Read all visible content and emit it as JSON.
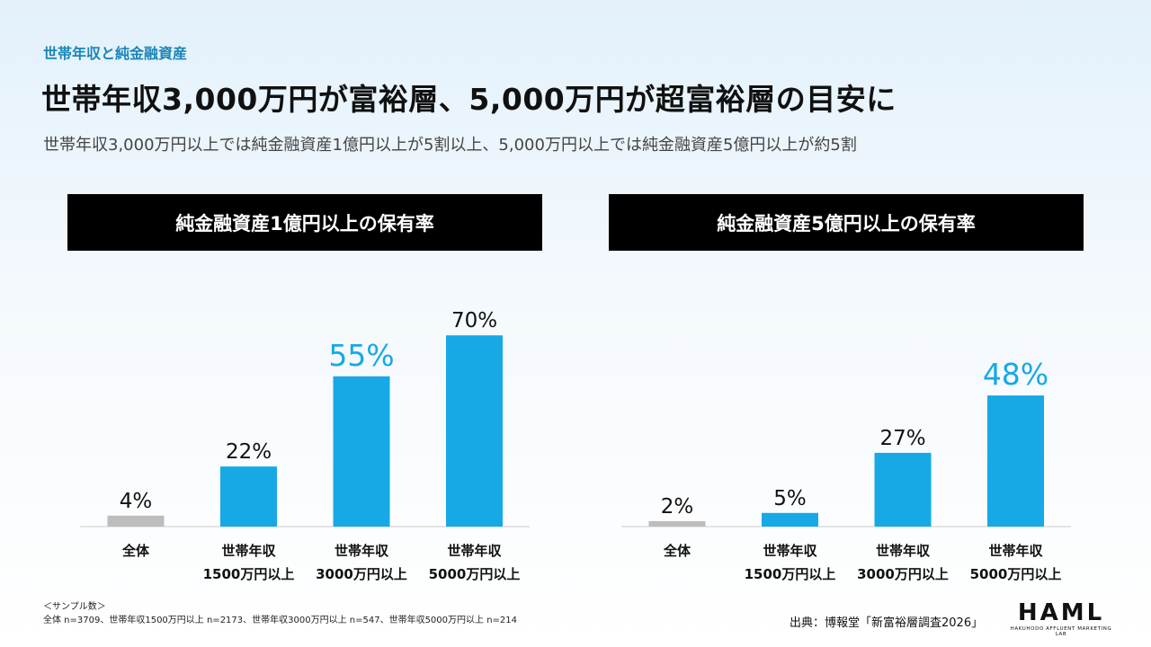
{
  "header": {
    "section_label": "世帯年収と純金融資産",
    "title": "世帯年収3,000万円が富裕層、5,000万円が超富裕層の目安に",
    "subtitle": "世帯年収3,000万円以上では純金融資産1億円以上が5割以上、5,000万円以上では純金融資産5億円以上が約5割"
  },
  "colors": {
    "bar": "#16a9e6",
    "bar_total": "#bdbdbd",
    "highlight_text": "#16a9e6",
    "text": "#111111",
    "axis": "#cccccc"
  },
  "chart_data": [
    {
      "type": "bar",
      "title": "純金融資産1億円以上の保有率",
      "categories": [
        [
          "全体"
        ],
        [
          "世帯年収",
          "1500万円以上"
        ],
        [
          "世帯年収",
          "3000万円以上"
        ],
        [
          "世帯年収",
          "5000万円以上"
        ]
      ],
      "values": [
        4,
        22,
        55,
        70
      ],
      "labels": [
        "4%",
        "22%",
        "55%",
        "70%"
      ],
      "highlight_index": 2,
      "ylim": [
        0,
        100
      ],
      "grid": false
    },
    {
      "type": "bar",
      "title": "純金融資産5億円以上の保有率",
      "categories": [
        [
          "全体"
        ],
        [
          "世帯年収",
          "1500万円以上"
        ],
        [
          "世帯年収",
          "3000万円以上"
        ],
        [
          "世帯年収",
          "5000万円以上"
        ]
      ],
      "values": [
        2,
        5,
        27,
        48
      ],
      "labels": [
        "2%",
        "5%",
        "27%",
        "48%"
      ],
      "highlight_index": 3,
      "ylim": [
        0,
        100
      ],
      "grid": false
    }
  ],
  "footer": {
    "sample_heading": "＜サンプル数＞",
    "sample_text": "全体 n=3709、世帯年収1500万円以上 n=2173、世帯年収3000万円以上 n=547、世帯年収5000万円以上 n=214",
    "source": "出典：博報堂「新富裕層調査2026」",
    "logo_main": "HAML",
    "logo_sub": "HAKUHODO AFFLUENT MARKETING LAB"
  }
}
